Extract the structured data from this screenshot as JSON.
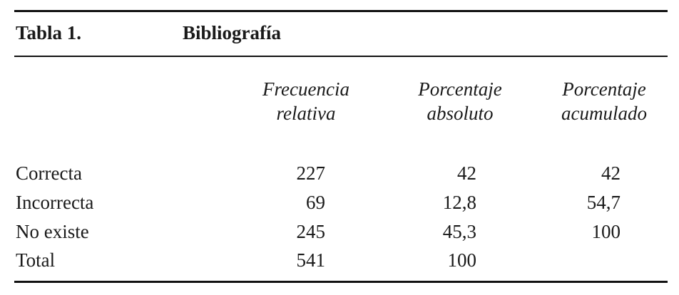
{
  "table": {
    "label": "Tabla 1.",
    "title": "Bibliografía",
    "columns": [
      {
        "line1": "Frecuencia",
        "line2": "relativa"
      },
      {
        "line1": "Porcentaje",
        "line2": "absoluto"
      },
      {
        "line1": "Porcentaje",
        "line2": "acumulado"
      }
    ],
    "rows": [
      {
        "label": "Correcta",
        "frecuencia": "227",
        "absoluto": "42",
        "acumulado": "42"
      },
      {
        "label": "Incorrecta",
        "frecuencia": "69",
        "absoluto": "12,8",
        "acumulado": "54,7"
      },
      {
        "label": "No existe",
        "frecuencia": "245",
        "absoluto": "45,3",
        "acumulado": "100"
      },
      {
        "label": "Total",
        "frecuencia": "541",
        "absoluto": "100",
        "acumulado": ""
      }
    ]
  }
}
